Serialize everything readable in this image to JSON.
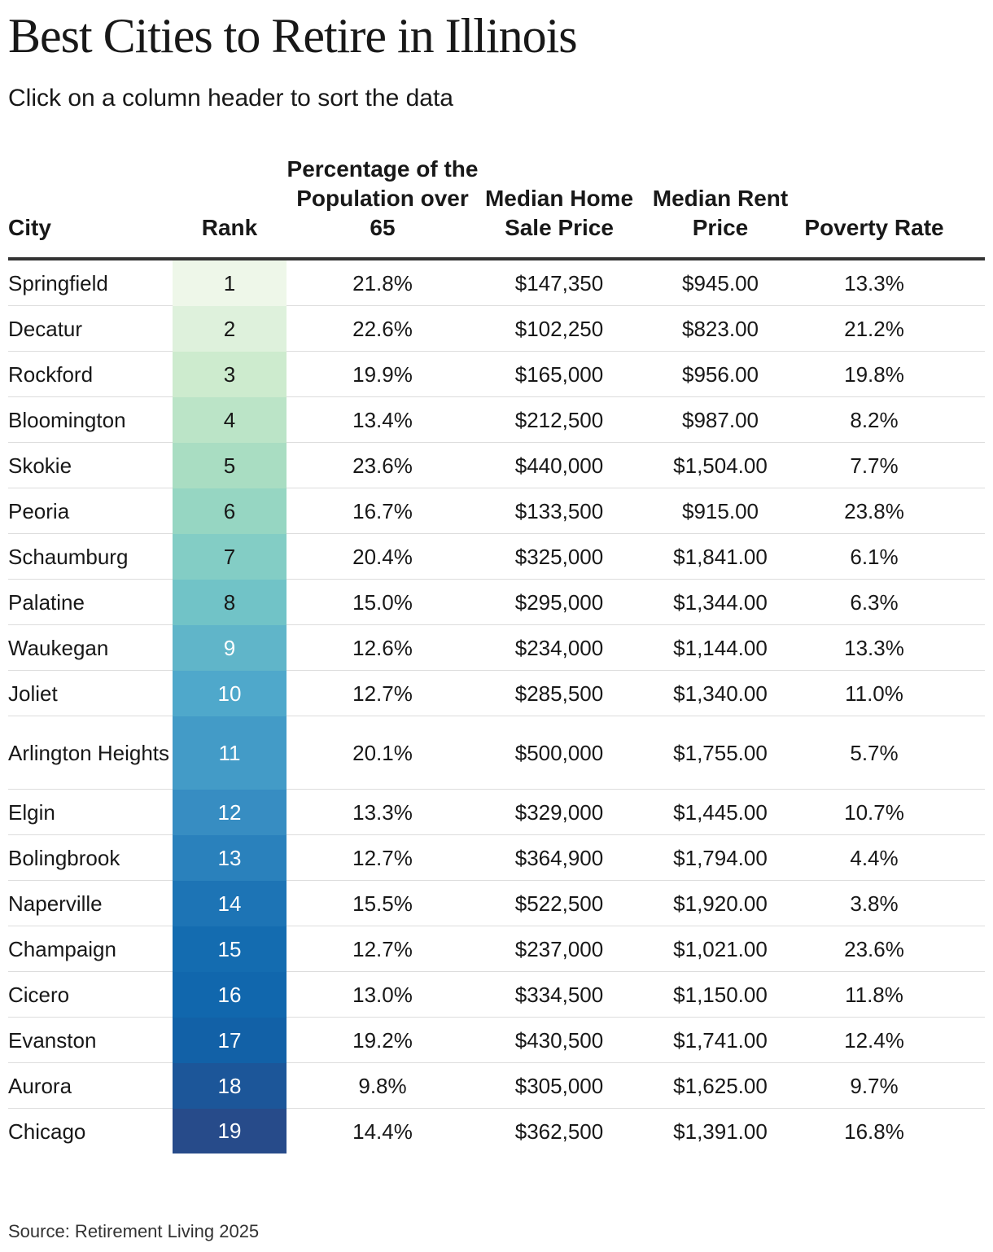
{
  "header": {
    "title": "Best Cities to Retire in Illinois",
    "subtitle": "Click on a column header to sort the data"
  },
  "table": {
    "columns": [
      "City",
      "Rank",
      "Percentage of the Population over 65",
      "Median Home Sale Price",
      "Median Rent Price",
      "Poverty Rate"
    ],
    "rows": [
      [
        "Springfield",
        "1",
        "21.8%",
        "$147,350",
        "$945.00",
        "13.3%"
      ],
      [
        "Decatur",
        "2",
        "22.6%",
        "$102,250",
        "$823.00",
        "21.2%"
      ],
      [
        "Rockford",
        "3",
        "19.9%",
        "$165,000",
        "$956.00",
        "19.8%"
      ],
      [
        "Bloomington",
        "4",
        "13.4%",
        "$212,500",
        "$987.00",
        "8.2%"
      ],
      [
        "Skokie",
        "5",
        "23.6%",
        "$440,000",
        "$1,504.00",
        "7.7%"
      ],
      [
        "Peoria",
        "6",
        "16.7%",
        "$133,500",
        "$915.00",
        "23.8%"
      ],
      [
        "Schaumburg",
        "7",
        "20.4%",
        "$325,000",
        "$1,841.00",
        "6.1%"
      ],
      [
        "Palatine",
        "8",
        "15.0%",
        "$295,000",
        "$1,344.00",
        "6.3%"
      ],
      [
        "Waukegan",
        "9",
        "12.6%",
        "$234,000",
        "$1,144.00",
        "13.3%"
      ],
      [
        "Joliet",
        "10",
        "12.7%",
        "$285,500",
        "$1,340.00",
        "11.0%"
      ],
      [
        "Arlington Heights",
        "11",
        "20.1%",
        "$500,000",
        "$1,755.00",
        "5.7%"
      ],
      [
        "Elgin",
        "12",
        "13.3%",
        "$329,000",
        "$1,445.00",
        "10.7%"
      ],
      [
        "Bolingbrook",
        "13",
        "12.7%",
        "$364,900",
        "$1,794.00",
        "4.4%"
      ],
      [
        "Naperville",
        "14",
        "15.5%",
        "$522,500",
        "$1,920.00",
        "3.8%"
      ],
      [
        "Champaign",
        "15",
        "12.7%",
        "$237,000",
        "$1,021.00",
        "23.6%"
      ],
      [
        "Cicero",
        "16",
        "13.0%",
        "$334,500",
        "$1,150.00",
        "11.8%"
      ],
      [
        "Evanston",
        "17",
        "19.2%",
        "$430,500",
        "$1,741.00",
        "12.4%"
      ],
      [
        "Aurora",
        "18",
        "9.8%",
        "$305,000",
        "$1,625.00",
        "9.7%"
      ],
      [
        "Chicago",
        "19",
        "14.4%",
        "$362,500",
        "$1,391.00",
        "16.8%"
      ]
    ]
  },
  "footer": {
    "source": "Source: Retirement Living 2025"
  }
}
